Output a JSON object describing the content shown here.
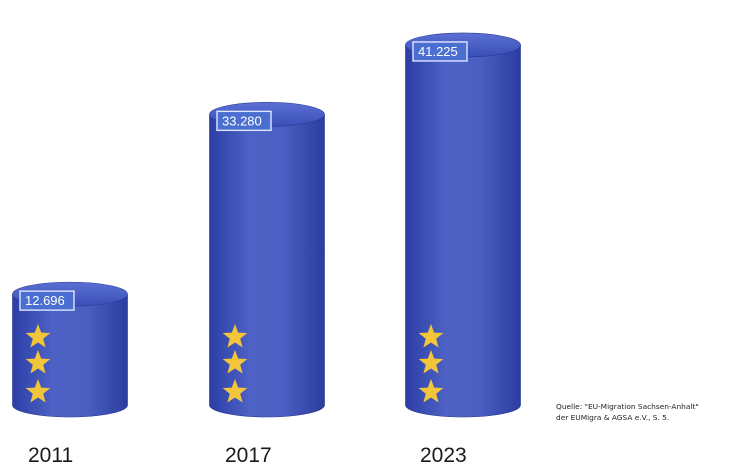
{
  "chart_data": {
    "type": "bar",
    "categories": [
      "2011",
      "2017",
      "2023"
    ],
    "values": [
      12696,
      33280,
      41225
    ],
    "value_labels": [
      "12.696",
      "33.280",
      "41.225"
    ],
    "title": "",
    "xlabel": "",
    "ylabel": "",
    "ylim": [
      0,
      45000
    ],
    "grid": false,
    "legend": "none",
    "bar_style": "3d-cylinder",
    "bar_icon": "three gold stars",
    "colors": {
      "bar": "#4a5fc1",
      "bar_dark": "#283ba0",
      "label_box": "#4a6fd0",
      "label_text": "#ffffff",
      "star": "#f2c53b",
      "category_text": "#1a1a1a"
    }
  },
  "source": {
    "line1": "Quelle: \"EU-Migration Sachsen-Anhalt\"",
    "line2": "der EUMigra & AGSA e.V., S. 5."
  }
}
